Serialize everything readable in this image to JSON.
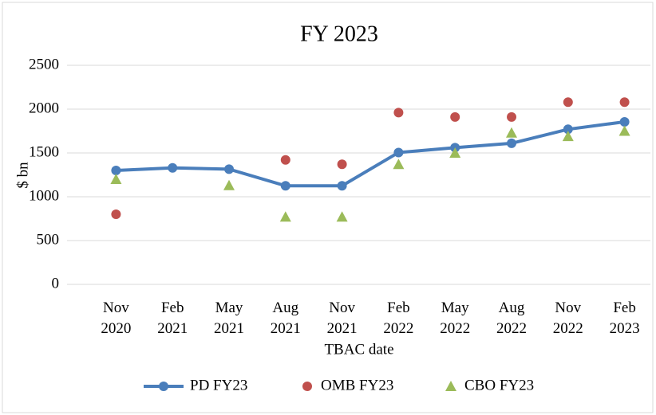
{
  "chart_data": {
    "type": "line",
    "title": "FY 2023",
    "x_label": "TBAC date",
    "y_label": "$ bn",
    "categories": [
      [
        "Nov",
        "2020"
      ],
      [
        "Feb",
        "2021"
      ],
      [
        "May",
        "2021"
      ],
      [
        "Aug",
        "2021"
      ],
      [
        "Nov",
        "2021"
      ],
      [
        "Feb",
        "2022"
      ],
      [
        "May",
        "2022"
      ],
      [
        "Aug",
        "2022"
      ],
      [
        "Nov",
        "2022"
      ],
      [
        "Feb",
        "2023"
      ]
    ],
    "series": [
      {
        "name": "PD FY23",
        "type": "line",
        "marker": "circle",
        "color": "#4a7ebb",
        "values": [
          1300,
          1330,
          1315,
          1125,
          1125,
          1505,
          1560,
          1610,
          1770,
          1855
        ]
      },
      {
        "name": "OMB FY23",
        "type": "scatter",
        "marker": "circle",
        "color": "#c0504d",
        "values": [
          800,
          null,
          null,
          1420,
          1370,
          1960,
          1910,
          1910,
          2080,
          2080
        ]
      },
      {
        "name": "CBO FY23",
        "type": "scatter",
        "marker": "triangle",
        "color": "#9bbb59",
        "values": [
          1200,
          null,
          1130,
          770,
          770,
          1370,
          1500,
          1730,
          1690,
          1750
        ]
      }
    ],
    "ylim": [
      0,
      2500
    ],
    "yticks": [
      0,
      500,
      1000,
      1500,
      2000,
      2500
    ],
    "grid": true,
    "legend": "bottom"
  }
}
